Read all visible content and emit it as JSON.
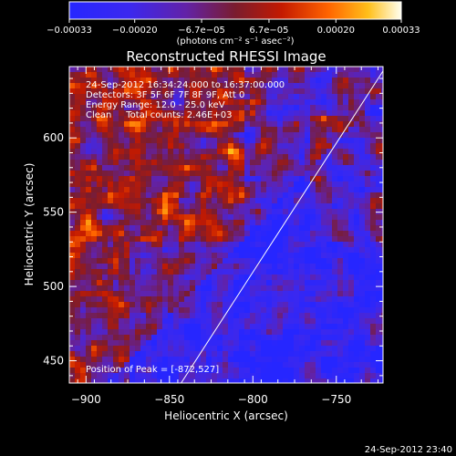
{
  "chart_data": {
    "type": "heatmap",
    "title": "Reconstructed RHESSI Image",
    "xlabel": "Heliocentric X (arcsec)",
    "ylabel": "Heliocentric Y (arcsec)",
    "xlim": [
      -910,
      -722
    ],
    "ylim": [
      435,
      648
    ],
    "x_ticks": [
      {
        "value": -900,
        "label": "−900"
      },
      {
        "value": -850,
        "label": "−850"
      },
      {
        "value": -800,
        "label": "−800"
      },
      {
        "value": -750,
        "label": "−750"
      }
    ],
    "y_ticks": [
      {
        "value": 450,
        "label": "450"
      },
      {
        "value": 500,
        "label": "500"
      },
      {
        "value": 550,
        "label": "550"
      },
      {
        "value": 600,
        "label": "600"
      }
    ],
    "colorbar": {
      "min": -0.00033,
      "max": 0.00033,
      "ticks": [
        {
          "value": -0.00033,
          "label": "−0.00033"
        },
        {
          "value": -0.0002,
          "label": "−0.00020"
        },
        {
          "value": -6.7e-05,
          "label": "−6.7e−05"
        },
        {
          "value": 6.7e-05,
          "label": "6.7e−05"
        },
        {
          "value": 0.0002,
          "label": "0.00020"
        },
        {
          "value": 0.00033,
          "label": "0.00033"
        }
      ],
      "unit_label": "(photons cm⁻² s⁻¹ asec⁻²)"
    },
    "annotations": [
      "24-Sep-2012 16:34:24.000 to 16:37:00.000",
      "Detectors: 3F 5F 6F 7F 8F 9F, Att 0",
      "Energy Range: 12.0 - 25.0 keV",
      "Clean     Total counts: 2.46E+03"
    ],
    "peak_label": "Position of Peak = [-872,527]",
    "peak": [
      -872,
      527
    ],
    "limb_line": [
      [
        -843,
        435
      ],
      [
        -722,
        645
      ]
    ],
    "grid": false,
    "colors": {
      "background": "#000000",
      "axis": "#ffffff",
      "limb": "#ffffff"
    }
  },
  "footer": {
    "timestamp": "24-Sep-2012 23:40"
  }
}
